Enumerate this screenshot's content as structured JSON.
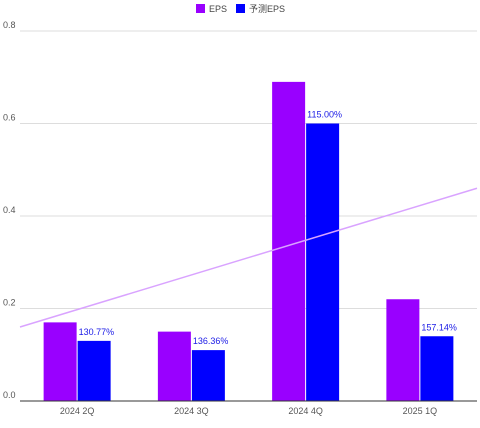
{
  "chart_data": {
    "type": "bar",
    "title": "",
    "xlabel": "",
    "ylabel": "",
    "categories": [
      "2024 2Q",
      "2024 3Q",
      "2024 4Q",
      "2025 1Q"
    ],
    "series": [
      {
        "name": "EPS",
        "color": "#9900ff",
        "values": [
          0.17,
          0.15,
          0.69,
          0.22
        ]
      },
      {
        "name": "予测EPS",
        "color": "#0000ff",
        "values": [
          0.13,
          0.11,
          0.6,
          0.14
        ]
      }
    ],
    "data_labels": [
      "130.77%",
      "136.36%",
      "115.00%",
      "157.14%"
    ],
    "trendline": {
      "series": "EPS",
      "color": "#d9a3ff",
      "start": 0.16,
      "end": 0.46
    },
    "ylim": [
      0,
      0.8
    ],
    "yticks": [
      "0.0",
      "0.2",
      "0.4",
      "0.6",
      "0.8"
    ],
    "grid": true,
    "legend_position": "top-center"
  }
}
